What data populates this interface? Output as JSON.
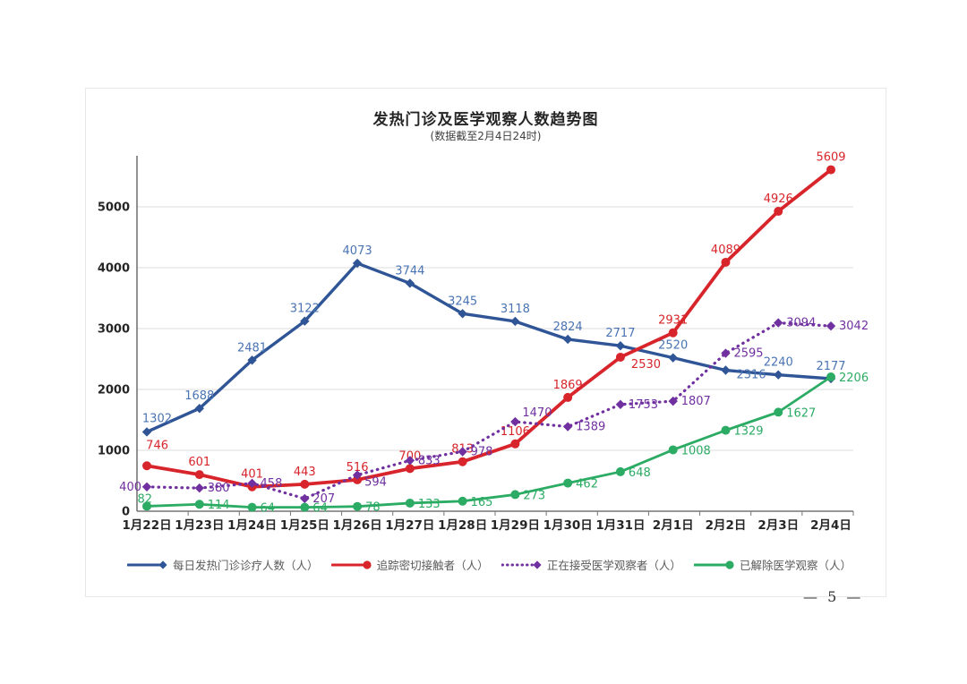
{
  "page": {
    "title": "发热门诊及医学观察人数趋势图",
    "subtitle": "(数据截至2月4日24时)",
    "page_number": "— 5 —"
  },
  "chart_data": {
    "type": "line",
    "title": "发热门诊及医学观察人数趋势图",
    "subtitle": "(数据截至2月4日24时)",
    "xlabel": "",
    "ylabel": "",
    "ylim": [
      0,
      5800
    ],
    "yticks": [
      0,
      1000,
      2000,
      3000,
      4000,
      5000
    ],
    "grid": "horizontal",
    "legend_position": "bottom",
    "categories": [
      "1月22日",
      "1月23日",
      "1月24日",
      "1月25日",
      "1月26日",
      "1月27日",
      "1月28日",
      "1月29日",
      "1月30日",
      "1月31日",
      "2月1日",
      "2月2日",
      "2月3日",
      "2月4日"
    ],
    "colors": {
      "grid": "#dcdcdc",
      "axis": "#767676",
      "tick_label": "#262626"
    },
    "series": [
      {
        "key": "daily-fever-clinic-visits",
        "name": "每日发热门诊诊疗人数（人）",
        "color": "#2f5597",
        "label_color": "#4a74b4",
        "line": "solid",
        "width": 3.4,
        "marker": "diamond",
        "values": [
          1302,
          1688,
          2481,
          3122,
          4073,
          3744,
          3245,
          3118,
          2824,
          2717,
          2520,
          2316,
          2240,
          2177
        ],
        "label_default": [
          0,
          -10,
          "middle"
        ],
        "label_overrides": {
          "0": [
            28,
            -11,
            "end"
          ],
          "11": [
            12,
            9,
            "start"
          ]
        }
      },
      {
        "key": "close-contacts-traced",
        "name": "追踪密切接触者（人）",
        "color": "#d7252b",
        "label_color": "#d7252b",
        "line": "solid",
        "width": 3.8,
        "marker": "circle",
        "values": [
          746,
          601,
          401,
          443,
          516,
          700,
          813,
          1106,
          1869,
          2530,
          2931,
          4089,
          4926,
          5609
        ],
        "label_default": [
          0,
          -10,
          "middle"
        ],
        "label_overrides": {
          "0": [
            24,
            -19,
            "end"
          ],
          "9": [
            12,
            12,
            "start"
          ]
        }
      },
      {
        "key": "under-medical-observation",
        "name": "正在接受医学观察者（人）",
        "color": "#7030a0",
        "label_color": "#7030a0",
        "line": "dotted",
        "width": 3.2,
        "marker": "diamond",
        "values": [
          400,
          380,
          458,
          207,
          594,
          833,
          978,
          1470,
          1389,
          1753,
          1807,
          2595,
          3094,
          3042
        ],
        "label_default": [
          9,
          4,
          "start"
        ],
        "label_overrides": {
          "0": [
            -6,
            4,
            "end"
          ],
          "4": [
            8,
            12,
            "start"
          ],
          "7": [
            8,
            -6,
            "start"
          ]
        }
      },
      {
        "key": "released-from-observation",
        "name": "已解除医学观察（人）",
        "color": "#2bab63",
        "label_color": "#2bab63",
        "line": "solid",
        "width": 2.8,
        "marker": "circle",
        "values": [
          82,
          114,
          64,
          64,
          78,
          133,
          165,
          273,
          462,
          648,
          1008,
          1329,
          1627,
          2206
        ],
        "label_default": [
          9,
          5,
          "start"
        ],
        "label_overrides": {
          "0": [
            6,
            -4,
            "end"
          ]
        }
      }
    ]
  }
}
